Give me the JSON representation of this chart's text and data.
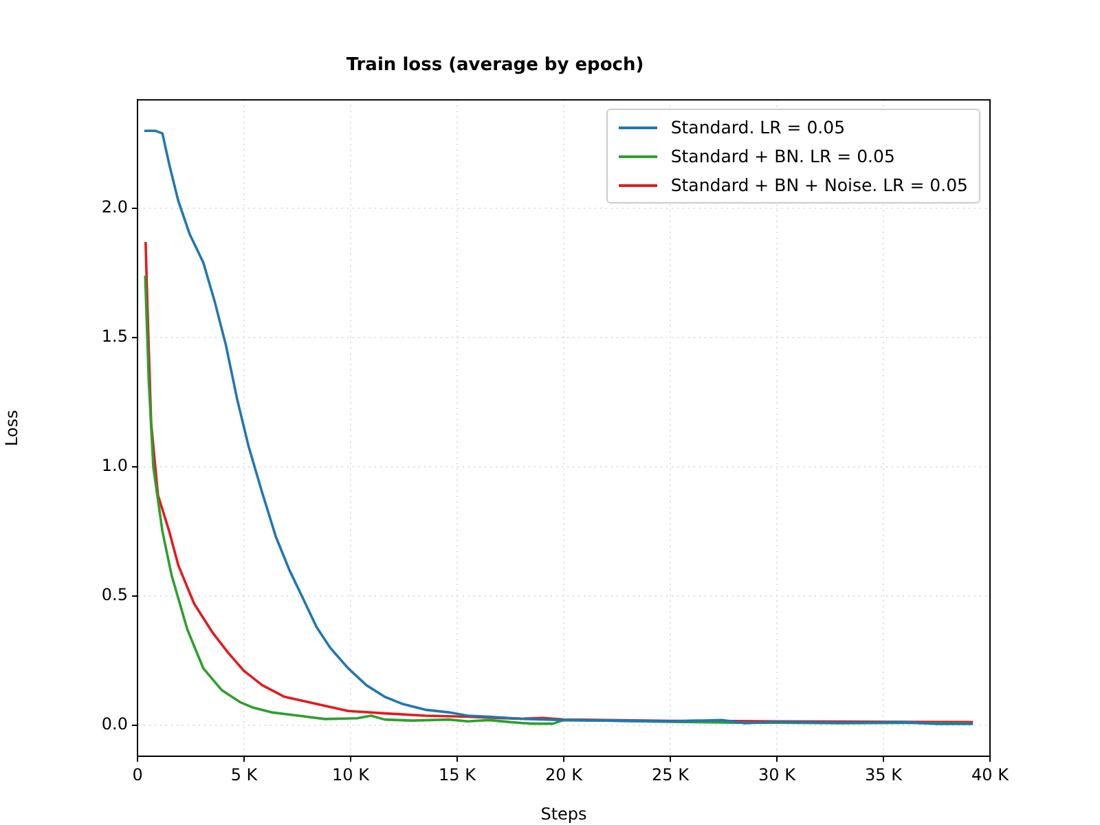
{
  "chart_data": {
    "type": "line",
    "title": "Train loss (average by epoch)",
    "xlabel": "Steps",
    "ylabel": "Loss",
    "xlim": [
      0,
      40000
    ],
    "xticks": [
      0,
      {
        "value": 5000,
        "label": "5 K"
      },
      {
        "value": 10000,
        "label": "10 K"
      },
      {
        "value": 15000,
        "label": "15 K"
      },
      {
        "value": 20000,
        "label": "20 K"
      },
      {
        "value": 25000,
        "label": "25 K"
      },
      {
        "value": 30000,
        "label": "30 K"
      },
      {
        "value": 35000,
        "label": "35 K"
      },
      {
        "value": 40000,
        "label": "40 K"
      }
    ],
    "ylim": [
      -0.12,
      2.42
    ],
    "yticks": [
      {
        "value": 0,
        "label": "0.0"
      },
      {
        "value": 0.5,
        "label": "0.5"
      },
      {
        "value": 1.0,
        "label": "1.0"
      },
      {
        "value": 1.5,
        "label": "1.5"
      },
      {
        "value": 2.0,
        "label": "2.0"
      }
    ],
    "grid": true,
    "legend": "top right",
    "line_style": "solid",
    "marker": "none",
    "series": [
      {
        "name": "Standard. LR = 0.05",
        "color": "#1f77b4",
        "x": [
          320,
          850,
          1170,
          1490,
          1910,
          2450,
          3090,
          3620,
          4150,
          4680,
          5210,
          5850,
          6490,
          7130,
          7770,
          8400,
          9040,
          9890,
          10740,
          11600,
          12450,
          13500,
          14600,
          15500,
          16500,
          18000,
          20000,
          22000,
          25000,
          27400,
          28500,
          30000,
          33000,
          36000,
          37500,
          39200
        ],
        "values": [
          2.3,
          2.3,
          2.29,
          2.17,
          2.03,
          1.9,
          1.79,
          1.64,
          1.47,
          1.26,
          1.08,
          0.9,
          0.73,
          0.6,
          0.49,
          0.38,
          0.3,
          0.22,
          0.155,
          0.11,
          0.082,
          0.06,
          0.05,
          0.037,
          0.033,
          0.025,
          0.02,
          0.018,
          0.015,
          0.02,
          0.008,
          0.013,
          0.01,
          0.012,
          0.005,
          0.005
        ]
      },
      {
        "name": "Standard + BN. LR = 0.05",
        "color": "#2ca02c",
        "x": [
          360,
          530,
          740,
          1170,
          1600,
          2340,
          3090,
          3940,
          4800,
          5430,
          6280,
          7550,
          8800,
          10300,
          10960,
          11600,
          12900,
          14600,
          15500,
          16500,
          17500,
          18500,
          19500,
          20000,
          22000,
          25000,
          28000,
          30000,
          33000,
          36000,
          39200
        ],
        "values": [
          1.74,
          1.33,
          1.0,
          0.75,
          0.58,
          0.37,
          0.22,
          0.137,
          0.09,
          0.068,
          0.05,
          0.037,
          0.024,
          0.027,
          0.037,
          0.022,
          0.018,
          0.022,
          0.015,
          0.02,
          0.012,
          0.006,
          0.006,
          0.02,
          0.018,
          0.013,
          0.01,
          0.01,
          0.008,
          0.009,
          0.007
        ]
      },
      {
        "name": "Standard + BN + Noise. LR = 0.05",
        "color": "#e31a1c",
        "x": [
          380,
          470,
          640,
          960,
          1490,
          1910,
          2660,
          3510,
          4260,
          5000,
          5850,
          6900,
          8200,
          9900,
          11600,
          13500,
          15500,
          17000,
          18000,
          19000,
          20000,
          22000,
          25000,
          28000,
          30000,
          33000,
          36000,
          39200
        ],
        "values": [
          1.87,
          1.61,
          1.17,
          0.89,
          0.75,
          0.62,
          0.47,
          0.36,
          0.28,
          0.21,
          0.155,
          0.11,
          0.086,
          0.055,
          0.046,
          0.037,
          0.033,
          0.028,
          0.025,
          0.028,
          0.022,
          0.02,
          0.017,
          0.016,
          0.015,
          0.014,
          0.013,
          0.012
        ]
      }
    ]
  }
}
